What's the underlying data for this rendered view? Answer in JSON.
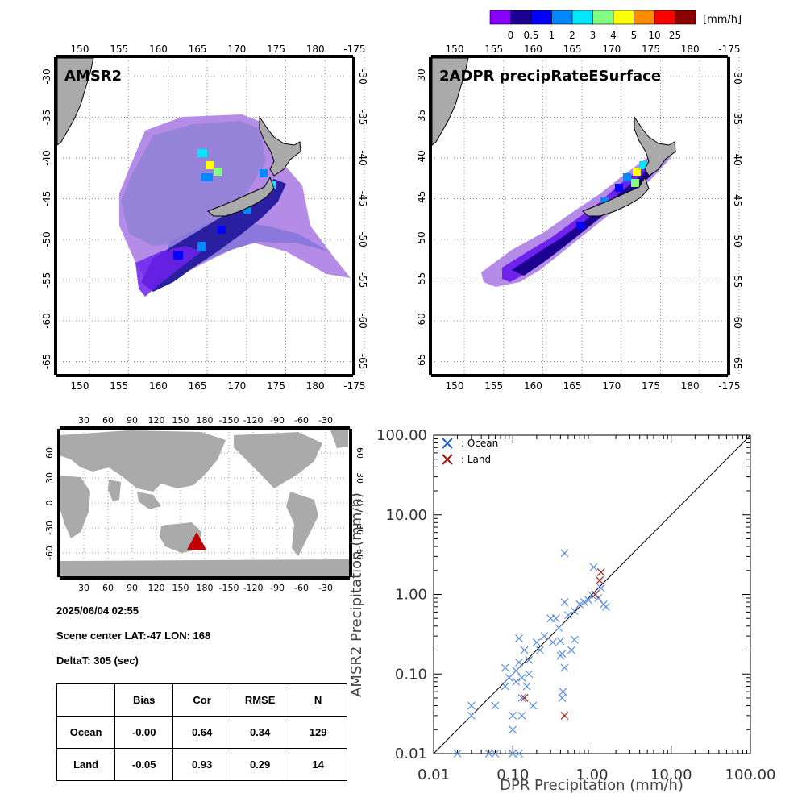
{
  "colorbar": {
    "unit": "[mm/h]",
    "colors": [
      "#8a00ff",
      "#1c0090",
      "#0000ff",
      "#0088ff",
      "#00e6ff",
      "#80ff80",
      "#ffff00",
      "#ff8c00",
      "#ff0000",
      "#8b0000"
    ],
    "labels": [
      "0",
      "0.5",
      "1",
      "2",
      "3",
      "4",
      "5",
      "10",
      "25"
    ]
  },
  "maps": [
    {
      "title": "AMSR2",
      "lon_ticks": [
        "150",
        "155",
        "160",
        "165",
        "170",
        "175",
        "180",
        "-175"
      ],
      "lat_ticks": [
        "-30",
        "-35",
        "-40",
        "-45",
        "-50",
        "-55",
        "-60",
        "-65"
      ]
    },
    {
      "title": "2ADPR precipRateESurface",
      "lon_ticks": [
        "150",
        "155",
        "160",
        "165",
        "170",
        "175",
        "180",
        "-175"
      ],
      "lat_ticks": [
        "-30",
        "-35",
        "-40",
        "-45",
        "-50",
        "-55",
        "-60",
        "-65"
      ]
    }
  ],
  "world_map": {
    "top_ticks": [
      "30",
      "60",
      "90",
      "120",
      "150",
      "180",
      "-150",
      "-120",
      "-90",
      "-60",
      "-30"
    ],
    "bottom_ticks": [
      "30",
      "60",
      "90",
      "120",
      "150",
      "180",
      "-150",
      "-120",
      "-90",
      "-60",
      "-30"
    ],
    "left_ticks": [
      "60",
      "30",
      "0",
      "-30",
      "-60"
    ],
    "right_ticks": [
      "60",
      "30",
      "0",
      "-30",
      "-60"
    ],
    "marker_color": "#c00000"
  },
  "info": {
    "datetime": "2025/06/04 02:55",
    "scene_center": "Scene center LAT:-47   LON: 168",
    "deltat": "DeltaT:  305 (sec)"
  },
  "stats": {
    "headers": [
      "",
      "Bias",
      "Cor",
      "RMSE",
      "N"
    ],
    "rows": [
      [
        "Ocean",
        "-0.00",
        "0.64",
        "0.34",
        "129"
      ],
      [
        "Land",
        "-0.05",
        "0.93",
        "0.29",
        "14"
      ]
    ]
  },
  "chart_data": {
    "type": "scatter",
    "xlabel": "DPR Precipitation (mm/h)",
    "ylabel": "AMSR2 Precipitation (mm/h)",
    "xlim": [
      0.01,
      100
    ],
    "ylim": [
      0.01,
      100
    ],
    "log_scale": true,
    "x_ticks": [
      "0.01",
      "0.10",
      "1.00",
      "10.00",
      "100.00"
    ],
    "y_ticks": [
      "0.01",
      "0.10",
      "1.00",
      "10.00",
      "100.00"
    ],
    "legend": [
      {
        "label": ": Ocean",
        "color": "#1f5fd6"
      },
      {
        "label": ": Land",
        "color": "#b01010"
      }
    ],
    "series": [
      {
        "name": "Ocean",
        "color": "#5b8fe0",
        "points": [
          [
            0.02,
            0.01
          ],
          [
            0.03,
            0.03
          ],
          [
            0.03,
            0.04
          ],
          [
            0.05,
            0.01
          ],
          [
            0.06,
            0.01
          ],
          [
            0.06,
            0.04
          ],
          [
            0.08,
            0.07
          ],
          [
            0.08,
            0.12
          ],
          [
            0.09,
            0.09
          ],
          [
            0.1,
            0.01
          ],
          [
            0.1,
            0.02
          ],
          [
            0.1,
            0.03
          ],
          [
            0.11,
            0.08
          ],
          [
            0.11,
            0.11
          ],
          [
            0.12,
            0.14
          ],
          [
            0.12,
            0.28
          ],
          [
            0.12,
            0.01
          ],
          [
            0.13,
            0.05
          ],
          [
            0.13,
            0.03
          ],
          [
            0.13,
            0.09
          ],
          [
            0.14,
            0.2
          ],
          [
            0.15,
            0.07
          ],
          [
            0.16,
            0.1
          ],
          [
            0.16,
            0.15
          ],
          [
            0.18,
            0.04
          ],
          [
            0.2,
            0.25
          ],
          [
            0.22,
            0.2
          ],
          [
            0.25,
            0.3
          ],
          [
            0.3,
            0.5
          ],
          [
            0.32,
            0.25
          ],
          [
            0.35,
            0.5
          ],
          [
            0.38,
            0.38
          ],
          [
            0.4,
            0.17
          ],
          [
            0.4,
            0.26
          ],
          [
            0.42,
            0.18
          ],
          [
            0.42,
            0.05
          ],
          [
            0.43,
            0.06
          ],
          [
            0.45,
            0.12
          ],
          [
            0.45,
            0.8
          ],
          [
            0.45,
            3.3
          ],
          [
            0.5,
            0.55
          ],
          [
            0.55,
            0.2
          ],
          [
            0.6,
            0.27
          ],
          [
            0.6,
            0.62
          ],
          [
            0.7,
            0.75
          ],
          [
            0.8,
            0.8
          ],
          [
            0.9,
            0.85
          ],
          [
            1.0,
            0.98
          ],
          [
            1.05,
            2.2
          ],
          [
            1.1,
            1.0
          ],
          [
            1.2,
            0.9
          ],
          [
            1.3,
            1.2
          ],
          [
            1.4,
            0.75
          ],
          [
            1.5,
            0.7
          ]
        ]
      },
      {
        "name": "Land",
        "color": "#a32020",
        "points": [
          [
            0.14,
            0.05
          ],
          [
            0.45,
            0.03
          ],
          [
            1.1,
            1.0
          ],
          [
            1.25,
            1.5
          ],
          [
            1.3,
            1.9
          ]
        ]
      }
    ]
  }
}
